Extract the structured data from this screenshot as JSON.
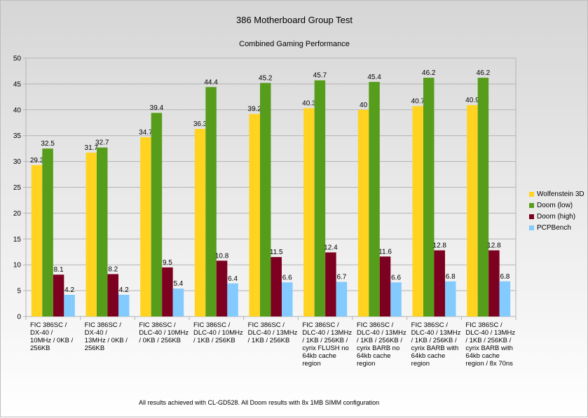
{
  "chart_data": {
    "type": "bar",
    "title": "386 Motherboard Group Test",
    "subtitle": "Combined Gaming Performance",
    "xlabel": "",
    "ylabel": "",
    "ylim": [
      0,
      50
    ],
    "yticks": [
      0,
      5,
      10,
      15,
      20,
      25,
      30,
      35,
      40,
      45,
      50
    ],
    "grid": true,
    "legend_position": "right",
    "categories": [
      "FIC 386SC / DX-40 / 10MHz / 0KB / 256KB",
      "FIC 386SC / DX-40 / 13MHz / 0KB / 256KB",
      "FIC 386SC / DLC-40 / 10MHz / 0KB / 256KB",
      "FIC 386SC / DLC-40 / 10MHz / 1KB / 256KB",
      "FIC 386SC / DLC-40 / 13MHz / 1KB / 256KB",
      "FIC 386SC / DLC-40 / 13MHz / 1KB / 256KB / cyrix FLUSH no 64kb cache region",
      "FIC 386SC / DLC-40 / 13MHz / 1KB / 256KB / cyrix BARB no 64kb cache region",
      "FIC 386SC / DLC-40 / 13MHz / 1KB / 256KB / cyrix BARB with 64kb cache region",
      "FIC 386SC / DLC-40 / 13MHz / 1KB / 256KB / cyrix BARB with 64kb cache region / 8x 70ns"
    ],
    "category_lines": [
      [
        "FIC 386SC /",
        "DX-40 /",
        "10MHz / 0KB /",
        "256KB"
      ],
      [
        "FIC 386SC /",
        "DX-40 /",
        "13MHz / 0KB /",
        "256KB"
      ],
      [
        "FIC 386SC /",
        "DLC-40 / 10MHz",
        "/ 0KB / 256KB"
      ],
      [
        "FIC 386SC /",
        "DLC-40 / 10MHz",
        "/ 1KB / 256KB"
      ],
      [
        "FIC 386SC /",
        "DLC-40 / 13MHz",
        "/ 1KB / 256KB"
      ],
      [
        "FIC 386SC /",
        "DLC-40 / 13MHz",
        "/ 1KB / 256KB /",
        "cyrix FLUSH no",
        "64kb cache",
        "region"
      ],
      [
        "FIC 386SC /",
        "DLC-40 / 13MHz",
        "/ 1KB / 256KB /",
        "cyrix BARB no",
        "64kb cache",
        "region"
      ],
      [
        "FIC 386SC /",
        "DLC-40 / 13MHz",
        "/ 1KB / 256KB /",
        "cyrix BARB with",
        "64kb cache",
        "region"
      ],
      [
        "FIC 386SC /",
        "DLC-40 / 13MHz",
        "/ 1KB / 256KB /",
        "cyrix BARB with",
        "64kb cache",
        "region / 8x 70ns"
      ]
    ],
    "series": [
      {
        "name": "Wolfenstein 3D",
        "color": "#ffd320",
        "values": [
          29.3,
          31.7,
          34.7,
          36.3,
          39.2,
          40.3,
          40,
          40.7,
          40.9
        ]
      },
      {
        "name": "Doom (low)",
        "color": "#579d1c",
        "values": [
          32.5,
          32.7,
          39.4,
          44.4,
          45.2,
          45.7,
          45.4,
          46.2,
          46.2
        ]
      },
      {
        "name": "Doom (high)",
        "color": "#7e0021",
        "values": [
          8.1,
          8.2,
          9.5,
          10.8,
          11.5,
          12.4,
          11.6,
          12.8,
          12.8
        ]
      },
      {
        "name": "PCPBench",
        "color": "#83caff",
        "values": [
          4.2,
          4.2,
          5.4,
          6.4,
          6.6,
          6.7,
          6.6,
          6.8,
          6.8
        ]
      }
    ]
  },
  "footnote": "All results achieved with CL-GD528. All Doom results with 8x 1MB SIMM configuration"
}
